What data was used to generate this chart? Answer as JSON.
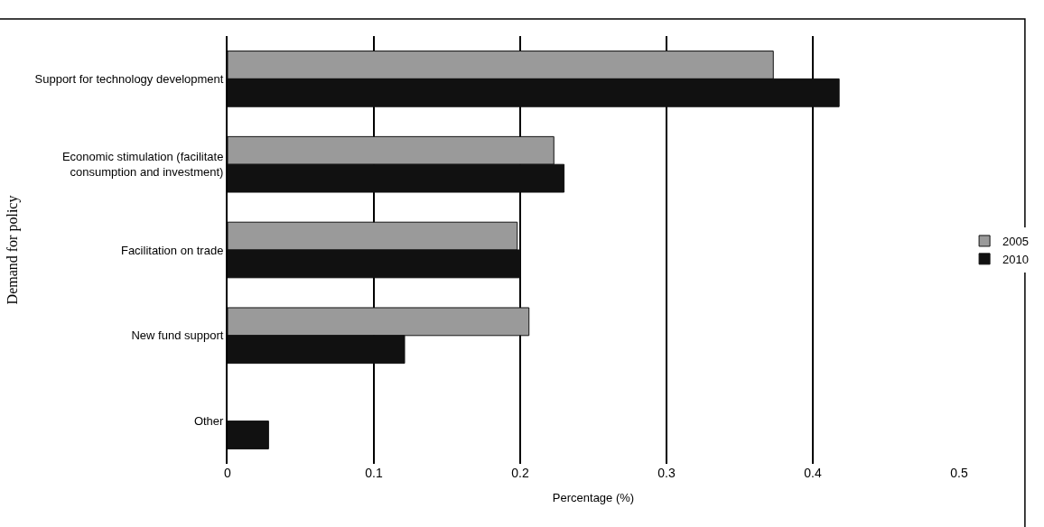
{
  "chart_data": {
    "type": "bar",
    "orientation": "horizontal",
    "xlabel": "Percentage (%)",
    "ylabel": "Demand for policy",
    "categories": [
      "Support for technology development",
      "Economic stimulation (facilitate consumption and investment)",
      "Facilitation on trade",
      "New fund support",
      "Other"
    ],
    "series": [
      {
        "name": "2005",
        "color": "#9a9a9a",
        "values": [
          0.373,
          0.223,
          0.198,
          0.206,
          null
        ]
      },
      {
        "name": "2010",
        "color": "#111111",
        "values": [
          0.418,
          0.23,
          0.2,
          0.121,
          0.028
        ]
      }
    ],
    "xlim": [
      0,
      0.5
    ],
    "xticks": [
      0,
      0.1,
      0.2,
      0.3,
      0.4,
      0.5
    ],
    "grid": "x",
    "legend": "right"
  }
}
